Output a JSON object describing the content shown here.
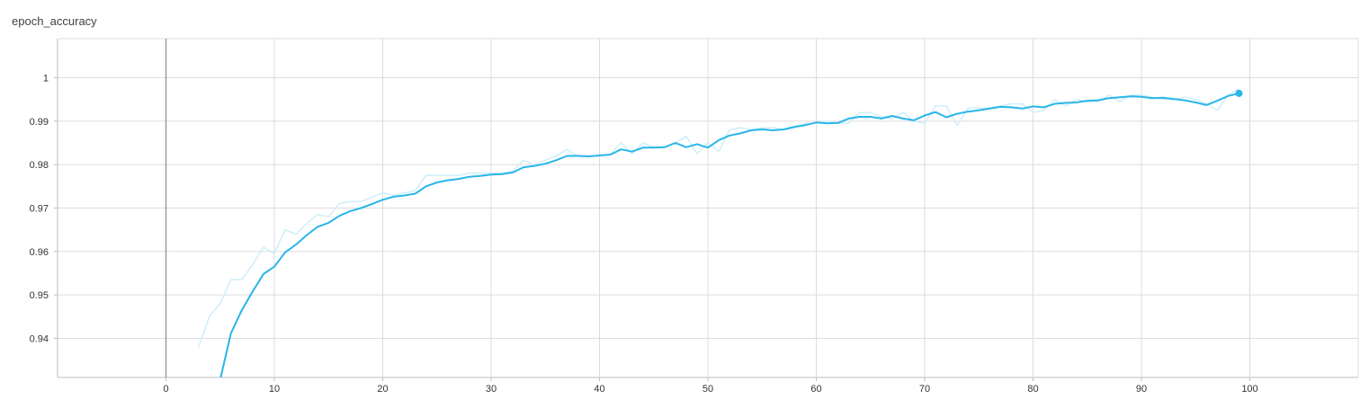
{
  "chart_data": {
    "type": "line",
    "title": "epoch_accuracy",
    "xlabel": "",
    "ylabel": "",
    "xlim": [
      -10,
      110
    ],
    "ylim": [
      0.931,
      1.009
    ],
    "x_ticks": [
      0,
      10,
      20,
      30,
      40,
      50,
      60,
      70,
      80,
      90,
      100
    ],
    "y_ticks": [
      0.94,
      0.95,
      0.96,
      0.97,
      0.98,
      0.99,
      1
    ],
    "grid": true,
    "legend": "none",
    "colors": {
      "smoothed": "#29b6e8",
      "raw": "#cfeefa",
      "zero_line": "#9e9e9e",
      "grid": "#dcdcdc",
      "axis": "#bdbdbd"
    },
    "series": [
      {
        "role": "raw",
        "x": [
          3,
          4,
          5,
          6,
          7,
          8,
          9,
          10,
          11,
          12,
          13,
          14,
          15,
          16,
          17,
          18,
          19,
          20,
          21,
          22,
          23,
          24,
          25,
          26,
          27,
          28,
          29,
          30,
          31,
          32,
          33,
          34,
          35,
          36,
          37,
          38,
          39,
          40,
          41,
          42,
          43,
          44,
          45,
          46,
          47,
          48,
          49,
          50,
          51,
          52,
          53,
          54,
          55,
          56,
          57,
          58,
          59,
          60,
          61,
          62,
          63,
          64,
          65,
          66,
          67,
          68,
          69,
          70,
          71,
          72,
          73,
          74,
          75,
          76,
          77,
          78,
          79,
          80,
          81,
          82,
          83,
          84,
          85,
          86,
          87,
          88,
          89,
          90,
          91,
          92,
          93,
          94,
          95,
          96,
          97,
          98,
          99
        ],
        "y": [
          0.938,
          0.945,
          0.948,
          0.9535,
          0.9535,
          0.957,
          0.961,
          0.9595,
          0.965,
          0.964,
          0.9665,
          0.9685,
          0.968,
          0.971,
          0.9715,
          0.9715,
          0.9725,
          0.9735,
          0.973,
          0.9735,
          0.974,
          0.9775,
          0.9775,
          0.9775,
          0.9775,
          0.978,
          0.978,
          0.978,
          0.978,
          0.9785,
          0.981,
          0.98,
          0.981,
          0.982,
          0.9835,
          0.982,
          0.982,
          0.982,
          0.9825,
          0.985,
          0.9825,
          0.985,
          0.984,
          0.984,
          0.985,
          0.9865,
          0.9825,
          0.985,
          0.983,
          0.988,
          0.9885,
          0.988,
          0.9885,
          0.9885,
          0.988,
          0.9885,
          0.9895,
          0.9895,
          0.99,
          0.9895,
          0.9895,
          0.992,
          0.992,
          0.991,
          0.9905,
          0.992,
          0.99,
          0.9895,
          0.9935,
          0.9935,
          0.989,
          0.993,
          0.993,
          0.993,
          0.9935,
          0.994,
          0.994,
          0.992,
          0.9925,
          0.995,
          0.9935,
          0.995,
          0.9945,
          0.9945,
          0.996,
          0.9945,
          0.996,
          0.996,
          0.9955,
          0.995,
          0.995,
          0.9955,
          0.995,
          0.994,
          0.9925,
          0.996,
          0.9975
        ]
      },
      {
        "role": "smoothed",
        "x": [
          5,
          6,
          7,
          8,
          9,
          10,
          11,
          12,
          13,
          14,
          15,
          16,
          17,
          18,
          19,
          20,
          21,
          22,
          23,
          24,
          25,
          26,
          27,
          28,
          29,
          30,
          31,
          32,
          33,
          34,
          35,
          36,
          37,
          38,
          39,
          40,
          41,
          42,
          43,
          44,
          45,
          46,
          47,
          48,
          49,
          50,
          51,
          52,
          53,
          54,
          55,
          56,
          57,
          58,
          59,
          60,
          61,
          62,
          63,
          64,
          65,
          66,
          67,
          68,
          69,
          70,
          71,
          72,
          73,
          74,
          75,
          76,
          77,
          78,
          79,
          80,
          81,
          82,
          83,
          84,
          85,
          86,
          87,
          88,
          89,
          90,
          91,
          92,
          93,
          94,
          95,
          96,
          97,
          98,
          99
        ],
        "y": [
          0.9305,
          0.9412,
          0.9465,
          0.9508,
          0.9548,
          0.9565,
          0.9598,
          0.9616,
          0.9638,
          0.9657,
          0.9666,
          0.9682,
          0.9693,
          0.97,
          0.9709,
          0.9719,
          0.9726,
          0.9729,
          0.9733,
          0.975,
          0.9759,
          0.9764,
          0.9767,
          0.9772,
          0.9774,
          0.9777,
          0.9778,
          0.9782,
          0.9794,
          0.9797,
          0.9802,
          0.981,
          0.982,
          0.982,
          0.9819,
          0.9821,
          0.9823,
          0.9835,
          0.983,
          0.9839,
          0.9839,
          0.984,
          0.985,
          0.984,
          0.9847,
          0.9839,
          0.9856,
          0.9867,
          0.9872,
          0.9879,
          0.9881,
          0.9879,
          0.9881,
          0.9887,
          0.9891,
          0.9897,
          0.9895,
          0.9896,
          0.9906,
          0.991,
          0.991,
          0.9906,
          0.9912,
          0.9906,
          0.9902,
          0.9913,
          0.9921,
          0.9909,
          0.9917,
          0.9922,
          0.9925,
          0.9929,
          0.9933,
          0.9932,
          0.9929,
          0.9934,
          0.9932,
          0.994,
          0.9942,
          0.9943,
          0.9947,
          0.9948,
          0.9953,
          0.9955,
          0.9957,
          0.9956,
          0.9953,
          0.9954,
          0.9951,
          0.9948,
          0.9943,
          0.9937,
          0.9947,
          0.9958,
          0.9964
        ]
      }
    ]
  }
}
